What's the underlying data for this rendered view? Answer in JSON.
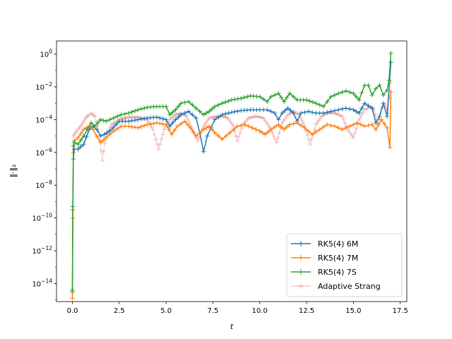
{
  "chart_data": {
    "type": "line",
    "xlabel": "t",
    "ylabel": "‖·‖₂",
    "xlim": [
      -0.85,
      17.85
    ],
    "ylog": true,
    "ylim_exp": [
      -15.1,
      0.8
    ],
    "x_ticks": [
      0,
      2.5,
      5,
      7.5,
      10,
      12.5,
      15,
      17.5
    ],
    "x_tick_labels": [
      "0.0",
      "2.5",
      "5.0",
      "7.5",
      "10.0",
      "12.5",
      "15.0",
      "17.5"
    ],
    "y_ticks_exp": [
      0,
      -2,
      -4,
      -6,
      -8,
      -10,
      -12,
      -14
    ],
    "y_tick_labels": [
      {
        "base": "10",
        "exp": "0"
      },
      {
        "base": "10",
        "exp": "−2"
      },
      {
        "base": "10",
        "exp": "−4"
      },
      {
        "base": "10",
        "exp": "−6"
      },
      {
        "base": "10",
        "exp": "−8"
      },
      {
        "base": "10",
        "exp": "−10"
      },
      {
        "base": "10",
        "exp": "−12"
      },
      {
        "base": "10",
        "exp": "−14"
      }
    ],
    "legend_position": "lower-right",
    "series": [
      {
        "name": "RK5(4) 6M",
        "color": "#1f77b4",
        "marker": "+",
        "log10_y": [
          [
            0.0,
            -14.5
          ],
          [
            0.02,
            -9.3
          ],
          [
            0.05,
            -6.4
          ],
          [
            0.1,
            -5.8
          ],
          [
            0.3,
            -5.8
          ],
          [
            0.6,
            -5.5
          ],
          [
            0.9,
            -4.6
          ],
          [
            1.1,
            -4.4
          ],
          [
            1.3,
            -4.6
          ],
          [
            1.5,
            -5.0
          ],
          [
            1.7,
            -4.9
          ],
          [
            2.0,
            -4.7
          ],
          [
            2.5,
            -4.1
          ],
          [
            3.0,
            -4.1
          ],
          [
            3.5,
            -4.0
          ],
          [
            4.0,
            -3.9
          ],
          [
            4.5,
            -3.85
          ],
          [
            5.0,
            -4.0
          ],
          [
            5.2,
            -4.4
          ],
          [
            5.5,
            -4.0
          ],
          [
            5.8,
            -3.7
          ],
          [
            6.2,
            -3.5
          ],
          [
            6.6,
            -3.9
          ],
          [
            6.8,
            -4.8
          ],
          [
            7.0,
            -5.95
          ],
          [
            7.2,
            -5.0
          ],
          [
            7.6,
            -4.0
          ],
          [
            8.0,
            -3.7
          ],
          [
            8.5,
            -3.55
          ],
          [
            9.0,
            -3.45
          ],
          [
            9.5,
            -3.4
          ],
          [
            10.0,
            -3.4
          ],
          [
            10.4,
            -3.4
          ],
          [
            10.8,
            -3.6
          ],
          [
            11.0,
            -4.0
          ],
          [
            11.2,
            -3.6
          ],
          [
            11.5,
            -3.3
          ],
          [
            11.8,
            -3.6
          ],
          [
            12.0,
            -4.1
          ],
          [
            12.2,
            -3.6
          ],
          [
            12.6,
            -3.5
          ],
          [
            13.0,
            -3.6
          ],
          [
            13.4,
            -3.6
          ],
          [
            13.8,
            -3.5
          ],
          [
            14.2,
            -3.4
          ],
          [
            14.6,
            -3.3
          ],
          [
            15.0,
            -3.4
          ],
          [
            15.3,
            -3.6
          ],
          [
            15.6,
            -3.0
          ],
          [
            16.0,
            -3.3
          ],
          [
            16.2,
            -4.2
          ],
          [
            16.4,
            -3.8
          ],
          [
            16.6,
            -3.0
          ],
          [
            16.8,
            -3.8
          ],
          [
            17.0,
            -0.5
          ]
        ]
      },
      {
        "name": "RK5(4) 7M",
        "color": "#ff7f0e",
        "marker": "+",
        "log10_y": [
          [
            0.0,
            -14.9
          ],
          [
            0.02,
            -10.0
          ],
          [
            0.05,
            -6.0
          ],
          [
            0.1,
            -5.3
          ],
          [
            0.3,
            -5.1
          ],
          [
            0.6,
            -4.6
          ],
          [
            0.9,
            -4.4
          ],
          [
            1.1,
            -4.6
          ],
          [
            1.3,
            -5.0
          ],
          [
            1.5,
            -5.4
          ],
          [
            1.8,
            -5.1
          ],
          [
            2.2,
            -4.7
          ],
          [
            2.6,
            -4.4
          ],
          [
            3.0,
            -4.4
          ],
          [
            3.5,
            -4.5
          ],
          [
            4.0,
            -4.3
          ],
          [
            4.5,
            -4.2
          ],
          [
            5.0,
            -4.3
          ],
          [
            5.3,
            -4.9
          ],
          [
            5.6,
            -4.4
          ],
          [
            6.0,
            -4.1
          ],
          [
            6.3,
            -4.5
          ],
          [
            6.6,
            -5.0
          ],
          [
            7.0,
            -4.6
          ],
          [
            7.3,
            -4.4
          ],
          [
            7.6,
            -4.8
          ],
          [
            8.0,
            -5.2
          ],
          [
            8.4,
            -4.8
          ],
          [
            8.8,
            -4.4
          ],
          [
            9.2,
            -4.3
          ],
          [
            9.6,
            -4.5
          ],
          [
            10.0,
            -4.7
          ],
          [
            10.3,
            -4.9
          ],
          [
            10.6,
            -4.6
          ],
          [
            11.0,
            -4.3
          ],
          [
            11.3,
            -4.6
          ],
          [
            11.6,
            -4.3
          ],
          [
            12.0,
            -4.2
          ],
          [
            12.4,
            -4.5
          ],
          [
            12.8,
            -4.9
          ],
          [
            13.2,
            -4.6
          ],
          [
            13.6,
            -4.3
          ],
          [
            14.0,
            -4.4
          ],
          [
            14.4,
            -4.6
          ],
          [
            14.8,
            -4.4
          ],
          [
            15.2,
            -4.2
          ],
          [
            15.6,
            -4.4
          ],
          [
            16.0,
            -4.3
          ],
          [
            16.2,
            -4.6
          ],
          [
            16.5,
            -4.0
          ],
          [
            16.8,
            -4.5
          ],
          [
            16.95,
            -5.7
          ],
          [
            17.0,
            -2.3
          ]
        ]
      },
      {
        "name": "RK5(4) 7S",
        "color": "#2ca02c",
        "marker": "+",
        "log10_y": [
          [
            0.0,
            -14.4
          ],
          [
            0.02,
            -9.5
          ],
          [
            0.05,
            -5.6
          ],
          [
            0.1,
            -5.4
          ],
          [
            0.3,
            -5.5
          ],
          [
            0.6,
            -5.0
          ],
          [
            0.8,
            -4.6
          ],
          [
            1.0,
            -4.2
          ],
          [
            1.2,
            -4.4
          ],
          [
            1.5,
            -4.0
          ],
          [
            1.8,
            -4.1
          ],
          [
            2.2,
            -3.9
          ],
          [
            2.6,
            -3.7
          ],
          [
            3.0,
            -3.6
          ],
          [
            3.5,
            -3.4
          ],
          [
            4.0,
            -3.25
          ],
          [
            4.5,
            -3.2
          ],
          [
            5.0,
            -3.2
          ],
          [
            5.2,
            -3.7
          ],
          [
            5.5,
            -3.4
          ],
          [
            5.8,
            -3.0
          ],
          [
            6.2,
            -2.9
          ],
          [
            6.6,
            -3.3
          ],
          [
            7.0,
            -3.7
          ],
          [
            7.3,
            -3.5
          ],
          [
            7.6,
            -3.2
          ],
          [
            8.0,
            -3.0
          ],
          [
            8.5,
            -2.8
          ],
          [
            9.0,
            -2.7
          ],
          [
            9.5,
            -2.55
          ],
          [
            10.0,
            -2.6
          ],
          [
            10.4,
            -2.9
          ],
          [
            10.6,
            -2.6
          ],
          [
            11.0,
            -2.4
          ],
          [
            11.3,
            -2.9
          ],
          [
            11.6,
            -2.4
          ],
          [
            12.0,
            -2.8
          ],
          [
            12.5,
            -2.8
          ],
          [
            13.0,
            -3.0
          ],
          [
            13.4,
            -3.2
          ],
          [
            13.8,
            -2.6
          ],
          [
            14.2,
            -2.4
          ],
          [
            14.6,
            -2.25
          ],
          [
            15.0,
            -2.4
          ],
          [
            15.3,
            -2.8
          ],
          [
            15.6,
            -1.9
          ],
          [
            15.8,
            -1.9
          ],
          [
            16.0,
            -2.5
          ],
          [
            16.2,
            -2.1
          ],
          [
            16.4,
            -1.9
          ],
          [
            16.6,
            -2.5
          ],
          [
            16.8,
            -2.2
          ],
          [
            16.9,
            -1.6
          ],
          [
            17.0,
            0.05
          ]
        ]
      },
      {
        "name": "Adaptive Strang",
        "color": "#d62728",
        "marker": "+",
        "log10_y": [
          [
            0.0,
            -14.6
          ],
          [
            0.02,
            -9.0
          ],
          [
            0.05,
            -5.0
          ],
          [
            0.1,
            -4.9
          ],
          [
            0.3,
            -4.6
          ],
          [
            0.5,
            -4.3
          ],
          [
            0.7,
            -3.9
          ],
          [
            0.9,
            -3.7
          ],
          [
            1.0,
            -3.6
          ],
          [
            1.2,
            -3.8
          ],
          [
            1.4,
            -4.7
          ],
          [
            1.6,
            -6.5
          ],
          [
            1.8,
            -4.9
          ],
          [
            2.1,
            -4.3
          ],
          [
            2.5,
            -4.0
          ],
          [
            3.0,
            -3.85
          ],
          [
            3.5,
            -3.85
          ],
          [
            4.0,
            -4.0
          ],
          [
            4.3,
            -4.6
          ],
          [
            4.6,
            -5.8
          ],
          [
            4.9,
            -4.6
          ],
          [
            5.2,
            -4.0
          ],
          [
            5.5,
            -3.7
          ],
          [
            5.8,
            -3.6
          ],
          [
            6.1,
            -3.8
          ],
          [
            6.4,
            -4.6
          ],
          [
            6.7,
            -5.3
          ],
          [
            7.0,
            -4.4
          ],
          [
            7.3,
            -3.9
          ],
          [
            7.7,
            -3.8
          ],
          [
            8.0,
            -3.8
          ],
          [
            8.3,
            -3.9
          ],
          [
            8.6,
            -4.4
          ],
          [
            8.8,
            -5.3
          ],
          [
            9.1,
            -4.3
          ],
          [
            9.4,
            -3.9
          ],
          [
            9.8,
            -3.8
          ],
          [
            10.2,
            -3.9
          ],
          [
            10.6,
            -4.6
          ],
          [
            10.9,
            -5.4
          ],
          [
            11.2,
            -4.2
          ],
          [
            11.5,
            -3.7
          ],
          [
            11.8,
            -3.5
          ],
          [
            12.1,
            -3.7
          ],
          [
            12.4,
            -4.4
          ],
          [
            12.7,
            -5.5
          ],
          [
            13.0,
            -4.3
          ],
          [
            13.3,
            -3.8
          ],
          [
            13.6,
            -3.6
          ],
          [
            14.0,
            -3.6
          ],
          [
            14.4,
            -3.8
          ],
          [
            14.7,
            -4.6
          ],
          [
            15.0,
            -5.1
          ],
          [
            15.3,
            -4.0
          ],
          [
            15.6,
            -3.4
          ],
          [
            15.9,
            -3.2
          ],
          [
            16.1,
            -3.4
          ],
          [
            16.3,
            -4.3
          ],
          [
            16.5,
            -3.3
          ],
          [
            16.7,
            -3.1
          ],
          [
            16.85,
            -3.6
          ],
          [
            17.0,
            -1.7
          ]
        ]
      }
    ]
  }
}
